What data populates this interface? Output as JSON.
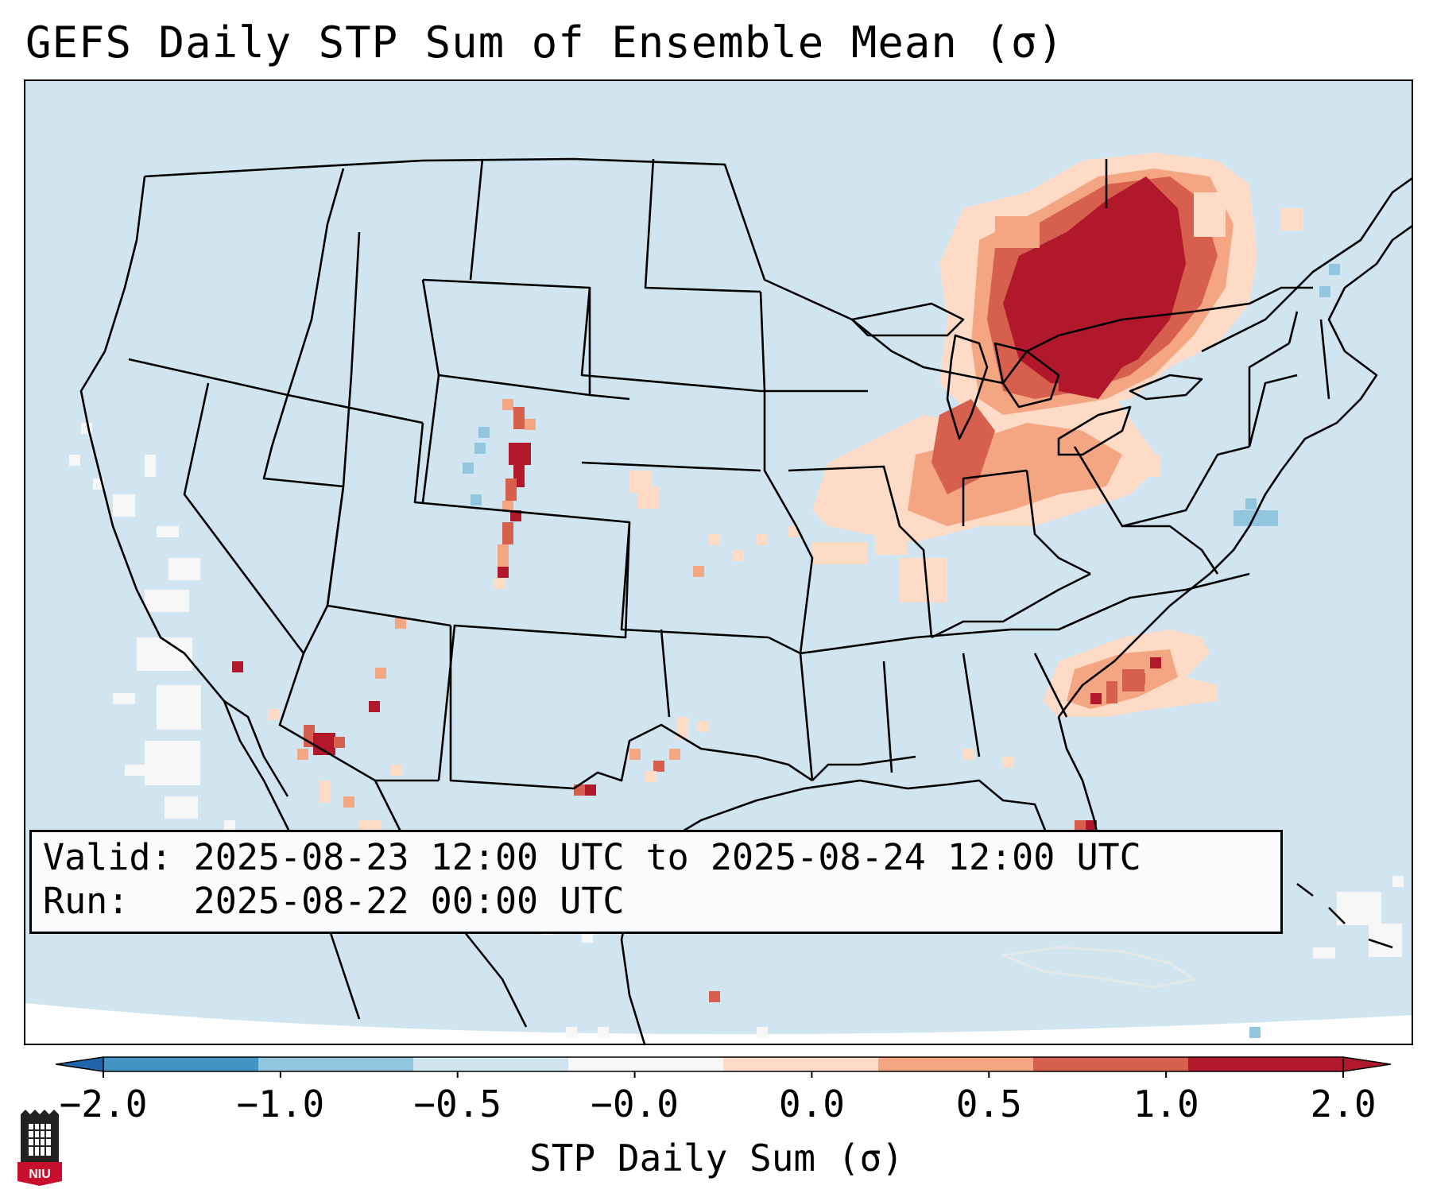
{
  "title": "GEFS Daily STP Sum of Ensemble Mean (σ)",
  "info": {
    "valid_label": "Valid:",
    "valid_value": "2025-08-23 12:00 UTC to 2025-08-24 12:00 UTC",
    "run_label": "Run:",
    "run_value": "2025-08-22 00:00 UTC"
  },
  "colorbar": {
    "label": "STP Daily Sum (σ)",
    "tick_labels": [
      "−2.0",
      "−1.0",
      "−0.5",
      "−0.0",
      "0.0",
      "0.5",
      "1.0",
      "2.0"
    ],
    "colors": [
      "#4393c3",
      "#92c5de",
      "#d1e5f0",
      "#f7f7f7",
      "#fddbc7",
      "#f4a582",
      "#d6604d",
      "#b2182b"
    ],
    "under_color": "#2166ac",
    "over_color": "#b2182b"
  },
  "map": {
    "background_color": "#d1e5f0",
    "projection": "Lambert Conformal, CONUS",
    "hotspots": [
      {
        "region": "Great Lakes / Ontario",
        "category": "2.0+"
      },
      {
        "region": "Ohio Valley / Lower Michigan",
        "category": "0.5-2.0"
      },
      {
        "region": "Colorado Front Range",
        "category": "1.0-2.0"
      },
      {
        "region": "Atlantic off Carolinas",
        "category": "0.5-2.0"
      },
      {
        "region": "South Florida",
        "category": "1.0-2.0"
      }
    ]
  },
  "logo": {
    "text": "NIU"
  }
}
